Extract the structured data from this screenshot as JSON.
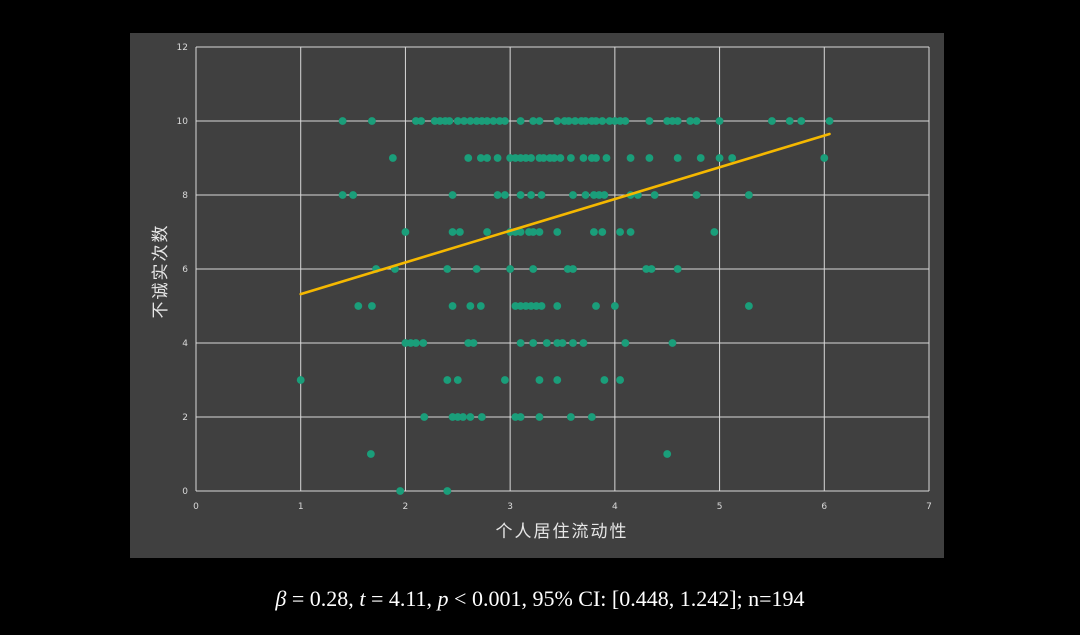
{
  "chart_data": {
    "type": "scatter",
    "title": "",
    "xlabel": "个人居住流动性",
    "ylabel": "不诚实次数",
    "xlim": [
      0,
      7
    ],
    "ylim": [
      0,
      12
    ],
    "x_ticks": [
      "0",
      "1",
      "2",
      "3",
      "4",
      "5",
      "6",
      "7"
    ],
    "y_ticks": [
      "0",
      "2",
      "4",
      "6",
      "8",
      "10",
      "12"
    ],
    "grid": true,
    "legend": "none",
    "point_color": "#1a9e7a",
    "trendline_color": "#f5b800",
    "trendline": {
      "x": [
        1.0,
        6.05
      ],
      "y": [
        5.32,
        9.65
      ]
    },
    "points": [
      [
        1.0,
        3
      ],
      [
        1.4,
        10
      ],
      [
        1.68,
        10
      ],
      [
        1.4,
        8
      ],
      [
        1.5,
        8
      ],
      [
        1.55,
        5
      ],
      [
        1.68,
        5
      ],
      [
        1.72,
        6
      ],
      [
        1.9,
        6
      ],
      [
        1.88,
        9
      ],
      [
        1.67,
        1
      ],
      [
        1.95,
        0
      ],
      [
        2.0,
        7
      ],
      [
        2.0,
        4
      ],
      [
        2.05,
        4
      ],
      [
        2.1,
        4
      ],
      [
        2.17,
        4
      ],
      [
        2.18,
        2
      ],
      [
        2.1,
        10
      ],
      [
        2.15,
        10
      ],
      [
        2.28,
        10
      ],
      [
        2.33,
        10
      ],
      [
        2.38,
        10
      ],
      [
        2.42,
        10
      ],
      [
        2.5,
        10
      ],
      [
        2.56,
        10
      ],
      [
        2.62,
        10
      ],
      [
        2.68,
        10
      ],
      [
        2.73,
        10
      ],
      [
        2.78,
        10
      ],
      [
        2.84,
        10
      ],
      [
        2.9,
        10
      ],
      [
        2.95,
        10
      ],
      [
        2.4,
        0
      ],
      [
        2.4,
        3
      ],
      [
        2.5,
        3
      ],
      [
        2.45,
        2
      ],
      [
        2.5,
        2
      ],
      [
        2.55,
        2
      ],
      [
        2.62,
        2
      ],
      [
        2.73,
        2
      ],
      [
        2.4,
        6
      ],
      [
        2.45,
        5
      ],
      [
        2.62,
        5
      ],
      [
        2.72,
        5
      ],
      [
        2.45,
        8
      ],
      [
        2.45,
        7
      ],
      [
        2.52,
        7
      ],
      [
        2.6,
        4
      ],
      [
        2.65,
        4
      ],
      [
        2.68,
        6
      ],
      [
        2.6,
        9
      ],
      [
        2.72,
        9
      ],
      [
        2.78,
        9
      ],
      [
        2.88,
        9
      ],
      [
        2.78,
        7
      ],
      [
        2.88,
        8
      ],
      [
        2.95,
        3
      ],
      [
        2.95,
        8
      ],
      [
        3.0,
        9
      ],
      [
        3.05,
        9
      ],
      [
        3.1,
        9
      ],
      [
        3.15,
        9
      ],
      [
        3.2,
        9
      ],
      [
        3.0,
        7
      ],
      [
        3.05,
        7
      ],
      [
        3.1,
        7
      ],
      [
        3.0,
        6
      ],
      [
        3.05,
        5
      ],
      [
        3.1,
        5
      ],
      [
        3.15,
        5
      ],
      [
        3.2,
        5
      ],
      [
        3.25,
        5
      ],
      [
        3.3,
        5
      ],
      [
        3.05,
        2
      ],
      [
        3.1,
        2
      ],
      [
        3.1,
        4
      ],
      [
        3.22,
        4
      ],
      [
        3.1,
        10
      ],
      [
        3.22,
        10
      ],
      [
        3.28,
        10
      ],
      [
        3.1,
        8
      ],
      [
        3.2,
        8
      ],
      [
        3.3,
        8
      ],
      [
        3.18,
        7
      ],
      [
        3.22,
        7
      ],
      [
        3.28,
        7
      ],
      [
        3.22,
        6
      ],
      [
        3.28,
        3
      ],
      [
        3.28,
        2
      ],
      [
        3.28,
        9
      ],
      [
        3.32,
        9
      ],
      [
        3.38,
        9
      ],
      [
        3.42,
        9
      ],
      [
        3.48,
        9
      ],
      [
        3.58,
        9
      ],
      [
        3.35,
        4
      ],
      [
        3.45,
        4
      ],
      [
        3.5,
        4
      ],
      [
        3.6,
        4
      ],
      [
        3.7,
        4
      ],
      [
        3.45,
        5
      ],
      [
        3.45,
        3
      ],
      [
        3.45,
        7
      ],
      [
        3.55,
        6
      ],
      [
        3.6,
        6
      ],
      [
        3.58,
        2
      ],
      [
        3.78,
        2
      ],
      [
        3.6,
        8
      ],
      [
        3.72,
        8
      ],
      [
        3.8,
        8
      ],
      [
        3.85,
        8
      ],
      [
        3.9,
        8
      ],
      [
        3.45,
        10
      ],
      [
        3.52,
        10
      ],
      [
        3.56,
        10
      ],
      [
        3.62,
        10
      ],
      [
        3.68,
        10
      ],
      [
        3.72,
        10
      ],
      [
        3.78,
        10
      ],
      [
        3.82,
        10
      ],
      [
        3.88,
        10
      ],
      [
        3.95,
        10
      ],
      [
        3.7,
        9
      ],
      [
        3.78,
        9
      ],
      [
        3.82,
        9
      ],
      [
        3.92,
        9
      ],
      [
        3.8,
        7
      ],
      [
        3.88,
        7
      ],
      [
        3.82,
        5
      ],
      [
        3.9,
        3
      ],
      [
        4.0,
        10
      ],
      [
        4.05,
        10
      ],
      [
        4.1,
        10
      ],
      [
        4.0,
        5
      ],
      [
        4.05,
        3
      ],
      [
        4.05,
        7
      ],
      [
        4.15,
        7
      ],
      [
        4.1,
        4
      ],
      [
        4.15,
        9
      ],
      [
        4.15,
        8
      ],
      [
        4.22,
        8
      ],
      [
        4.33,
        10
      ],
      [
        4.33,
        9
      ],
      [
        4.3,
        6
      ],
      [
        4.35,
        6
      ],
      [
        4.38,
        8
      ],
      [
        4.5,
        10
      ],
      [
        4.55,
        10
      ],
      [
        4.6,
        10
      ],
      [
        4.5,
        1
      ],
      [
        4.55,
        4
      ],
      [
        4.6,
        6
      ],
      [
        4.6,
        9
      ],
      [
        4.72,
        10
      ],
      [
        4.78,
        10
      ],
      [
        4.78,
        8
      ],
      [
        4.82,
        9
      ],
      [
        4.95,
        7
      ],
      [
        5.0,
        9
      ],
      [
        5.0,
        10
      ],
      [
        5.12,
        9
      ],
      [
        5.28,
        8
      ],
      [
        5.28,
        5
      ],
      [
        5.5,
        10
      ],
      [
        5.67,
        10
      ],
      [
        5.78,
        10
      ],
      [
        6.0,
        9
      ],
      [
        6.05,
        10
      ]
    ]
  },
  "caption": {
    "beta_symbol": "β",
    "beta_rest": " = 0.28, ",
    "t_symbol": "t",
    "t_rest": " = 4.11, ",
    "p_symbol": "p",
    "p_rest": " < 0.001, 95% CI: [0.448, 1.242]; n=194"
  }
}
